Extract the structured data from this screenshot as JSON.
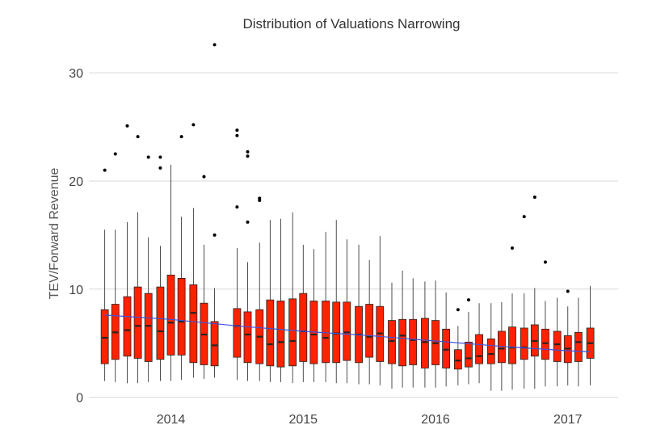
{
  "chart_data": {
    "type": "boxplot",
    "title": "Distribution of Valuations Narrowing",
    "xlabel": "",
    "ylabel": "TEV/Forward Revenue",
    "ylim": [
      -1,
      33
    ],
    "yticks": [
      0,
      10,
      20,
      30
    ],
    "xlim": [
      2013.38,
      2017.38
    ],
    "xticks": [
      2014,
      2015,
      2016,
      2017
    ],
    "xtick_labels": [
      "2014",
      "2015",
      "2016",
      "2017"
    ],
    "grid": "horizontal",
    "colors": {
      "box": "#ff2200",
      "trend": "#3b52e0",
      "outlier": "#000000",
      "grid": "#d9d9d9"
    },
    "boxes": [
      {
        "x": 2013.5,
        "min": 1.5,
        "q1": 3.1,
        "median": 5.5,
        "q3": 8.1,
        "max": 15.5,
        "outliers": [
          21.0
        ]
      },
      {
        "x": 2013.58,
        "min": 1.4,
        "q1": 3.5,
        "median": 6.0,
        "q3": 8.6,
        "max": 15.5,
        "outliers": [
          22.5
        ]
      },
      {
        "x": 2013.67,
        "min": 1.3,
        "q1": 3.8,
        "median": 6.2,
        "q3": 9.3,
        "max": 16.2,
        "outliers": [
          25.1
        ]
      },
      {
        "x": 2013.75,
        "min": 1.3,
        "q1": 3.6,
        "median": 6.6,
        "q3": 10.2,
        "max": 17.1,
        "outliers": [
          24.1
        ]
      },
      {
        "x": 2013.83,
        "min": 1.4,
        "q1": 3.3,
        "median": 6.6,
        "q3": 9.6,
        "max": 14.8,
        "outliers": [
          22.2
        ]
      },
      {
        "x": 2013.92,
        "min": 1.5,
        "q1": 3.5,
        "median": 6.1,
        "q3": 10.2,
        "max": 14.0,
        "outliers": [
          22.2,
          21.2
        ]
      },
      {
        "x": 2014.0,
        "min": 1.5,
        "q1": 3.9,
        "median": 6.9,
        "q3": 11.3,
        "max": 21.5,
        "outliers": []
      },
      {
        "x": 2014.08,
        "min": 1.6,
        "q1": 3.9,
        "median": 7.0,
        "q3": 11.0,
        "max": 16.7,
        "outliers": [
          24.1
        ]
      },
      {
        "x": 2014.17,
        "min": 1.8,
        "q1": 3.2,
        "median": 7.8,
        "q3": 10.4,
        "max": 17.5,
        "outliers": [
          25.2
        ]
      },
      {
        "x": 2014.25,
        "min": 1.7,
        "q1": 3.0,
        "median": 5.8,
        "q3": 8.7,
        "max": 14.1,
        "outliers": [
          20.4
        ]
      },
      {
        "x": 2014.33,
        "min": 1.8,
        "q1": 2.9,
        "median": 4.8,
        "q3": 7.0,
        "max": 10.1,
        "outliers": [
          15.0,
          32.6
        ]
      },
      {
        "x": 2014.5,
        "min": 1.6,
        "q1": 3.7,
        "median": 6.6,
        "q3": 8.2,
        "max": 13.8,
        "outliers": [
          17.6,
          24.2,
          24.7
        ]
      },
      {
        "x": 2014.58,
        "min": 1.5,
        "q1": 3.2,
        "median": 5.8,
        "q3": 7.9,
        "max": 12.5,
        "outliers": [
          16.2,
          22.3,
          22.7
        ]
      },
      {
        "x": 2014.67,
        "min": 1.5,
        "q1": 3.1,
        "median": 5.6,
        "q3": 8.1,
        "max": 14.3,
        "outliers": [
          18.2,
          18.4
        ]
      },
      {
        "x": 2014.75,
        "min": 1.4,
        "q1": 2.9,
        "median": 4.9,
        "q3": 9.0,
        "max": 16.4,
        "outliers": []
      },
      {
        "x": 2014.83,
        "min": 1.4,
        "q1": 2.8,
        "median": 5.1,
        "q3": 8.9,
        "max": 16.5,
        "outliers": []
      },
      {
        "x": 2014.92,
        "min": 1.3,
        "q1": 2.9,
        "median": 5.2,
        "q3": 9.1,
        "max": 17.1,
        "outliers": []
      },
      {
        "x": 2015.0,
        "min": 1.4,
        "q1": 3.3,
        "median": 6.1,
        "q3": 9.6,
        "max": 14.1,
        "outliers": []
      },
      {
        "x": 2015.08,
        "min": 1.4,
        "q1": 3.1,
        "median": 5.8,
        "q3": 8.9,
        "max": 13.7,
        "outliers": []
      },
      {
        "x": 2015.17,
        "min": 1.4,
        "q1": 3.2,
        "median": 5.5,
        "q3": 8.9,
        "max": 15.3,
        "outliers": []
      },
      {
        "x": 2015.25,
        "min": 1.3,
        "q1": 3.2,
        "median": 5.9,
        "q3": 8.8,
        "max": 16.4,
        "outliers": []
      },
      {
        "x": 2015.33,
        "min": 1.3,
        "q1": 3.4,
        "median": 6.0,
        "q3": 8.8,
        "max": 14.6,
        "outliers": []
      },
      {
        "x": 2015.42,
        "min": 1.2,
        "q1": 3.2,
        "median": 5.8,
        "q3": 8.4,
        "max": 14.1,
        "outliers": []
      },
      {
        "x": 2015.5,
        "min": 1.2,
        "q1": 3.7,
        "median": 5.6,
        "q3": 8.6,
        "max": 12.7,
        "outliers": []
      },
      {
        "x": 2015.58,
        "min": 1.1,
        "q1": 3.3,
        "median": 5.9,
        "q3": 8.4,
        "max": 14.9,
        "outliers": []
      },
      {
        "x": 2015.67,
        "min": 0.8,
        "q1": 3.1,
        "median": 5.2,
        "q3": 7.1,
        "max": 10.6,
        "outliers": []
      },
      {
        "x": 2015.75,
        "min": 0.9,
        "q1": 2.9,
        "median": 5.7,
        "q3": 7.2,
        "max": 11.7,
        "outliers": []
      },
      {
        "x": 2015.83,
        "min": 0.9,
        "q1": 3.0,
        "median": 5.3,
        "q3": 7.2,
        "max": 11.0,
        "outliers": []
      },
      {
        "x": 2015.92,
        "min": 0.9,
        "q1": 2.7,
        "median": 5.1,
        "q3": 7.3,
        "max": 10.7,
        "outliers": []
      },
      {
        "x": 2016.0,
        "min": 0.9,
        "q1": 3.0,
        "median": 5.0,
        "q3": 7.1,
        "max": 10.8,
        "outliers": []
      },
      {
        "x": 2016.08,
        "min": 1.0,
        "q1": 2.7,
        "median": 4.4,
        "q3": 6.3,
        "max": 9.7,
        "outliers": []
      },
      {
        "x": 2016.17,
        "min": 1.1,
        "q1": 2.6,
        "median": 3.4,
        "q3": 4.4,
        "max": 6.6,
        "outliers": [
          8.1
        ]
      },
      {
        "x": 2016.25,
        "min": 1.2,
        "q1": 2.8,
        "median": 3.6,
        "q3": 5.1,
        "max": 7.9,
        "outliers": [
          9.0
        ]
      },
      {
        "x": 2016.33,
        "min": 1.3,
        "q1": 3.1,
        "median": 3.8,
        "q3": 5.8,
        "max": 8.7,
        "outliers": []
      },
      {
        "x": 2016.42,
        "min": 0.6,
        "q1": 3.1,
        "median": 4.0,
        "q3": 5.4,
        "max": 8.7,
        "outliers": []
      },
      {
        "x": 2016.5,
        "min": 0.6,
        "q1": 3.2,
        "median": 4.5,
        "q3": 6.1,
        "max": 8.8,
        "outliers": []
      },
      {
        "x": 2016.58,
        "min": 0.7,
        "q1": 3.1,
        "median": 4.6,
        "q3": 6.5,
        "max": 9.6,
        "outliers": [
          13.8
        ]
      },
      {
        "x": 2016.67,
        "min": 0.8,
        "q1": 3.5,
        "median": 4.6,
        "q3": 6.4,
        "max": 9.6,
        "outliers": [
          16.7
        ]
      },
      {
        "x": 2016.75,
        "min": 0.8,
        "q1": 3.8,
        "median": 5.2,
        "q3": 6.7,
        "max": 10.1,
        "outliers": [
          18.5
        ]
      },
      {
        "x": 2016.83,
        "min": 1.0,
        "q1": 3.5,
        "median": 5.0,
        "q3": 6.3,
        "max": 8.9,
        "outliers": [
          12.5
        ]
      },
      {
        "x": 2016.92,
        "min": 1.0,
        "q1": 3.3,
        "median": 4.9,
        "q3": 6.1,
        "max": 9.2,
        "outliers": []
      },
      {
        "x": 2017.0,
        "min": 1.1,
        "q1": 3.2,
        "median": 4.5,
        "q3": 5.7,
        "max": 8.4,
        "outliers": [
          9.8
        ]
      },
      {
        "x": 2017.08,
        "min": 1.0,
        "q1": 3.3,
        "median": 5.1,
        "q3": 6.0,
        "max": 9.2,
        "outliers": []
      },
      {
        "x": 2017.17,
        "min": 1.1,
        "q1": 3.6,
        "median": 5.0,
        "q3": 6.4,
        "max": 10.3,
        "outliers": []
      }
    ],
    "trend": {
      "type": "smoothed line",
      "x": [
        2013.5,
        2014.0,
        2014.5,
        2015.0,
        2015.5,
        2016.0,
        2016.5,
        2017.0,
        2017.17
      ],
      "y": [
        7.6,
        7.2,
        6.6,
        6.1,
        5.7,
        5.2,
        4.7,
        4.3,
        4.2
      ]
    }
  }
}
